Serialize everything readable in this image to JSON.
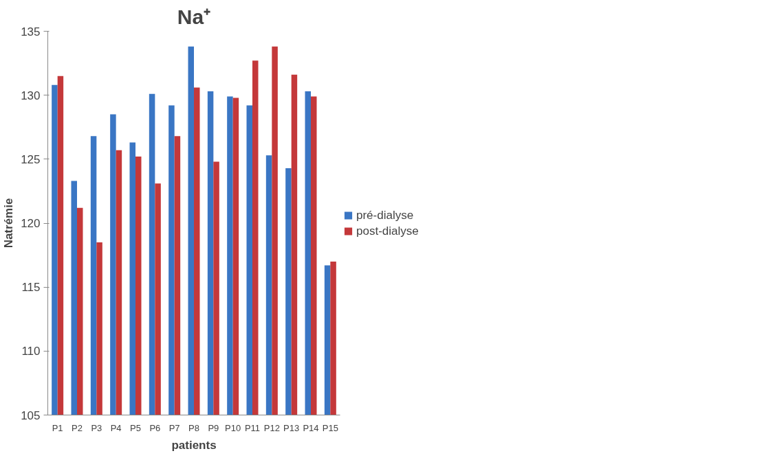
{
  "chart_data": {
    "type": "bar",
    "title": "Na⁺",
    "xlabel": "patients",
    "ylabel": "Natrémie",
    "categories": [
      "P1",
      "P2",
      "P3",
      "P4",
      "P5",
      "P6",
      "P7",
      "P8",
      "P9",
      "P10",
      "P11",
      "P12",
      "P13",
      "P14",
      "P15"
    ],
    "series": [
      {
        "name": "pré-dialyse",
        "color": "#3a76c4",
        "values": [
          130.8,
          123.3,
          126.8,
          128.5,
          126.3,
          130.1,
          129.2,
          133.8,
          130.3,
          129.9,
          129.2,
          125.3,
          124.3,
          130.3,
          116.7
        ]
      },
      {
        "name": "post-dialyse",
        "color": "#c4383a",
        "values": [
          131.5,
          121.2,
          118.5,
          125.7,
          125.2,
          123.1,
          126.8,
          130.6,
          124.8,
          129.8,
          132.7,
          133.8,
          131.6,
          129.9,
          117.0
        ]
      }
    ],
    "ylim": [
      105,
      135
    ],
    "yticks": [
      105,
      110,
      115,
      120,
      125,
      130,
      135
    ],
    "grid": false,
    "legend": "right"
  }
}
